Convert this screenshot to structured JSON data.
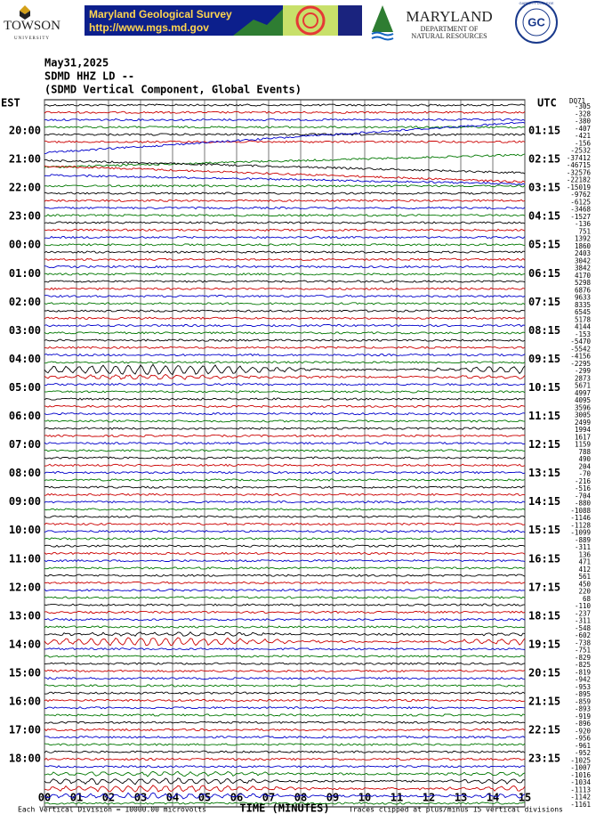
{
  "header": {
    "towson": "TOWSON",
    "towson_sub": "UNIVERSITY",
    "mgs_title": "Maryland Geological Survey",
    "mgs_url": "http://www.mgs.md.gov",
    "dnr_name": "MARYLAND",
    "dnr_sub1": "DEPARTMENT OF",
    "dnr_sub2": "NATURAL RESOURCES",
    "gc": "GC",
    "gc_ring": "GARRETT COLLEGE"
  },
  "plot": {
    "date": "May31,2025",
    "station": "SDMD HHZ LD --",
    "description": "(SDMD Vertical Component, Global Events)",
    "left_zone": "EST",
    "right_zone": "UTC",
    "corner": "DQ71",
    "est_labels": [
      "20:00",
      "21:00",
      "22:00",
      "23:00",
      "00:00",
      "01:00",
      "02:00",
      "03:00",
      "04:00",
      "05:00",
      "06:00",
      "07:00",
      "08:00",
      "09:00",
      "10:00",
      "11:00",
      "12:00",
      "13:00",
      "14:00",
      "15:00",
      "16:00",
      "17:00",
      "18:00"
    ],
    "utc_labels": [
      "01:15",
      "02:15",
      "03:15",
      "04:15",
      "05:15",
      "06:15",
      "07:15",
      "08:15",
      "09:15",
      "10:15",
      "11:15",
      "12:15",
      "13:15",
      "14:15",
      "15:15",
      "16:15",
      "17:15",
      "18:15",
      "19:15",
      "20:15",
      "21:15",
      "22:15",
      "23:15"
    ],
    "trace_offsets": [
      -305,
      -328,
      -380,
      -407,
      -421,
      -156,
      -2532,
      -37412,
      -46715,
      -32576,
      -22182,
      -15019,
      -9762,
      -6125,
      -3468,
      -1527,
      -136,
      751,
      1392,
      1860,
      2403,
      3042,
      3842,
      4170,
      5298,
      6876,
      9633,
      8335,
      6545,
      5178,
      4144,
      -153,
      -5470,
      -5542,
      -4156,
      -2295,
      -299,
      2873,
      5671,
      4997,
      4095,
      3596,
      3005,
      2499,
      1994,
      1617,
      1159,
      788,
      490,
      204,
      -70,
      -216,
      -516,
      -704,
      -880,
      -1088,
      -1146,
      -1128,
      -1099,
      -889,
      -311,
      136,
      471,
      412,
      561,
      450,
      220,
      68,
      -110,
      -237,
      -311,
      -548,
      -602,
      -738,
      -751,
      -829,
      -825,
      -819,
      -942,
      -953,
      -895,
      -859,
      -893,
      -919,
      -896,
      -920,
      -956,
      -961,
      -952,
      -1025,
      -1007,
      -1016,
      -1034,
      -1113,
      -1142,
      -1161
    ],
    "x_labels": [
      "00",
      "01",
      "02",
      "03",
      "04",
      "05",
      "06",
      "07",
      "08",
      "09",
      "10",
      "11",
      "12",
      "13",
      "14",
      "15"
    ],
    "x_title": "TIME (MINUTES)",
    "footer_left": "Each Vertical Division = 10000.00 microvolts",
    "footer_right": "Traces clipped at plus/minus 15 vertical divisions"
  }
}
